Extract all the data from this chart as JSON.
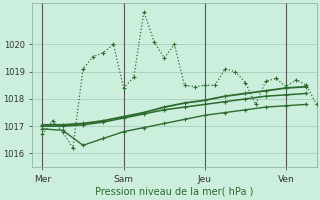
{
  "bg_color": "#cceedd",
  "grid_color": "#aaccbb",
  "line_color": "#2d6a2d",
  "xlabel": "Pression niveau de la mer( hPa )",
  "ylim": [
    1015.5,
    1021.5
  ],
  "yticks": [
    1016,
    1017,
    1018,
    1019,
    1020
  ],
  "day_labels": [
    "Mer",
    "Sam",
    "Jeu",
    "Ven"
  ],
  "day_positions": [
    0,
    4,
    8,
    12
  ],
  "vline_positions": [
    0,
    4,
    8,
    12
  ],
  "vline_color": "#555555",
  "s1_x": [
    0,
    0.5,
    1.0,
    1.5,
    2.0,
    2.5,
    3.0,
    3.5,
    4.0,
    4.5,
    5.0,
    5.5,
    6.0,
    6.5,
    7.0,
    7.5,
    8.0,
    8.5,
    9.0,
    9.5,
    10.0,
    10.5,
    11.0,
    11.5,
    12.0,
    12.5,
    13.0,
    13.5
  ],
  "s1_y": [
    1016.7,
    1017.2,
    1016.8,
    1016.2,
    1019.1,
    1019.55,
    1019.7,
    1020.0,
    1018.4,
    1018.8,
    1021.2,
    1020.1,
    1019.5,
    1020.0,
    1018.5,
    1018.45,
    1018.5,
    1018.5,
    1019.1,
    1019.0,
    1018.6,
    1017.8,
    1018.65,
    1018.75,
    1018.45,
    1018.7,
    1018.5,
    1017.8
  ],
  "s2_x": [
    0,
    1,
    2,
    3,
    4,
    5,
    6,
    7,
    8,
    9,
    10,
    11,
    12,
    13
  ],
  "s2_y": [
    1017.05,
    1017.05,
    1017.1,
    1017.2,
    1017.35,
    1017.5,
    1017.7,
    1017.85,
    1017.95,
    1018.1,
    1018.2,
    1018.3,
    1018.4,
    1018.45
  ],
  "s3_x": [
    0,
    1,
    2,
    3,
    4,
    5,
    6,
    7,
    8,
    9,
    10,
    11,
    12,
    13
  ],
  "s3_y": [
    1017.0,
    1017.0,
    1017.05,
    1017.15,
    1017.3,
    1017.45,
    1017.6,
    1017.7,
    1017.8,
    1017.9,
    1018.0,
    1018.1,
    1018.15,
    1018.2
  ],
  "s4_x": [
    0,
    1,
    2,
    3,
    4,
    5,
    6,
    7,
    8,
    9,
    10,
    11,
    12,
    13
  ],
  "s4_y": [
    1016.9,
    1016.85,
    1016.3,
    1016.55,
    1016.8,
    1016.95,
    1017.1,
    1017.25,
    1017.4,
    1017.5,
    1017.6,
    1017.7,
    1017.75,
    1017.8
  ],
  "xlim": [
    -0.5,
    13.5
  ],
  "marker_size": 2.5,
  "xlabel_fontsize": 7,
  "tick_fontsize": 6,
  "lw_main": 1.0,
  "lw_trend": 1.2
}
